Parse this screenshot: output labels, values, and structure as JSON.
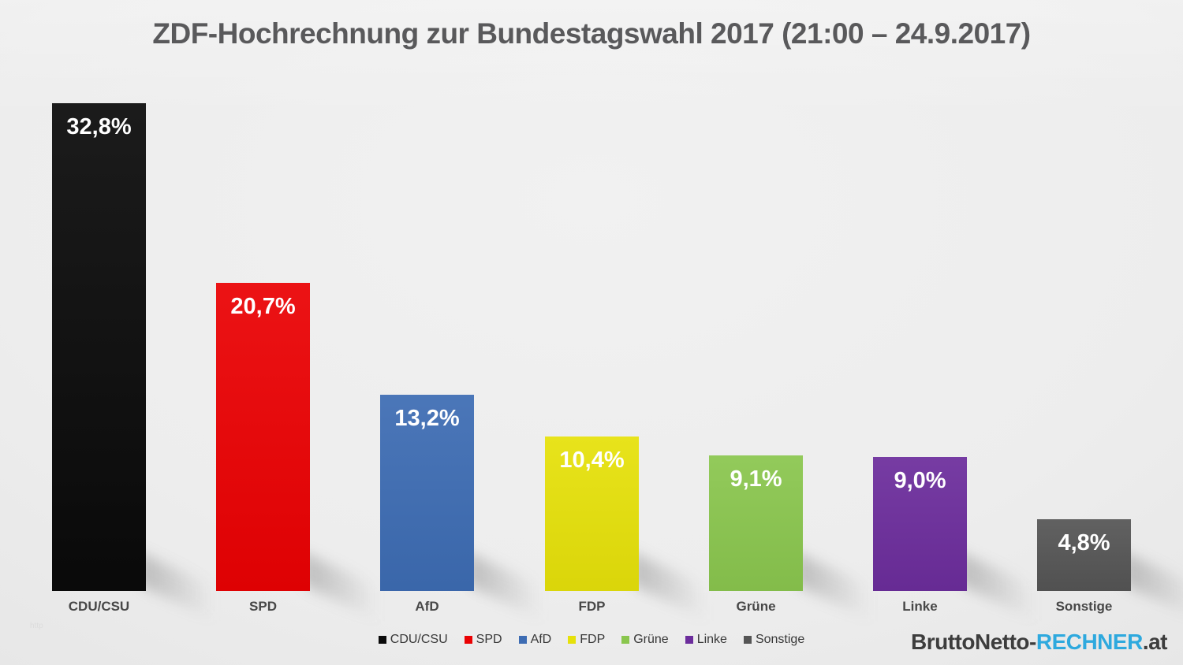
{
  "title": "ZDF-Hochrechnung zur Bundestagswahl 2017 (21:00 – 24.9.2017)",
  "watermark": "http",
  "logo": {
    "part1": "BruttoNetto-",
    "part2": "RECHNER",
    "part3": ".at",
    "accent_color": "#2ea9de",
    "text_color": "#3d3d3d"
  },
  "chart_data": {
    "type": "bar",
    "title": "ZDF-Hochrechnung zur Bundestagswahl 2017 (21:00 – 24.9.2017)",
    "categories": [
      "CDU/CSU",
      "SPD",
      "AfD",
      "FDP",
      "Grüne",
      "Linke",
      "Sonstige"
    ],
    "values": [
      32.8,
      20.7,
      13.2,
      10.4,
      9.1,
      9.0,
      4.8
    ],
    "value_labels": [
      "32,8%",
      "20,7%",
      "13,2%",
      "10,4%",
      "9,1%",
      "9,0%",
      "4,8%"
    ],
    "bar_colors": [
      "#0a0a0a",
      "#ea0103",
      "#3d6cb3",
      "#e6e10a",
      "#8ac64e",
      "#6c2d9c",
      "#555555"
    ],
    "legend": [
      "CDU/CSU",
      "SPD",
      "AfD",
      "FDP",
      "Grüne",
      "Linke",
      "Sonstige"
    ],
    "legend_position": "bottom",
    "xlabel": "",
    "ylabel": "",
    "ylim": [
      0,
      35
    ],
    "grid": false,
    "value_label_position": "inside-top",
    "background": "#ececec"
  }
}
